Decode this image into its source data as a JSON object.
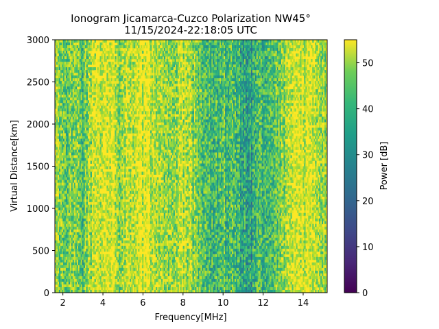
{
  "chart_data": {
    "type": "heatmap",
    "title_line1": "Ionogram Jicamarca-Cuzco Polarization NW45°",
    "title_line2": "11/15/2024-22:18:05 UTC",
    "xlabel": "Frequency[MHz]",
    "ylabel": "Virtual Distance[km]",
    "xlim": [
      1.6,
      15.2
    ],
    "ylim": [
      0,
      3000
    ],
    "x_ticks": [
      2,
      4,
      6,
      8,
      10,
      12,
      14
    ],
    "y_ticks": [
      0,
      500,
      1000,
      1500,
      2000,
      2500,
      3000
    ],
    "colorbar": {
      "label": "Power [dB]",
      "range": [
        0,
        55
      ],
      "ticks": [
        0,
        10,
        20,
        30,
        40,
        50
      ],
      "colormap": "viridis"
    },
    "column_profile": {
      "frequency_mhz": [
        1.6,
        2.0,
        2.5,
        3.0,
        3.3,
        3.6,
        4.0,
        4.5,
        4.9,
        5.2,
        5.6,
        6.0,
        6.5,
        6.9,
        7.2,
        7.6,
        8.0,
        8.5,
        9.0,
        9.5,
        10.0,
        10.5,
        11.0,
        11.4,
        11.8,
        12.2,
        12.6,
        13.0,
        13.3,
        13.6,
        14.0,
        14.5,
        15.2
      ],
      "mean_power_db": [
        46,
        44,
        45,
        40,
        46,
        53,
        54,
        53,
        46,
        50,
        54,
        54,
        51,
        46,
        44,
        48,
        52,
        45,
        40,
        38,
        38,
        37,
        34,
        31,
        37,
        40,
        41,
        43,
        53,
        54,
        54,
        51,
        47
      ],
      "note": "approximate mean power across range gates, read from the colour field"
    }
  }
}
